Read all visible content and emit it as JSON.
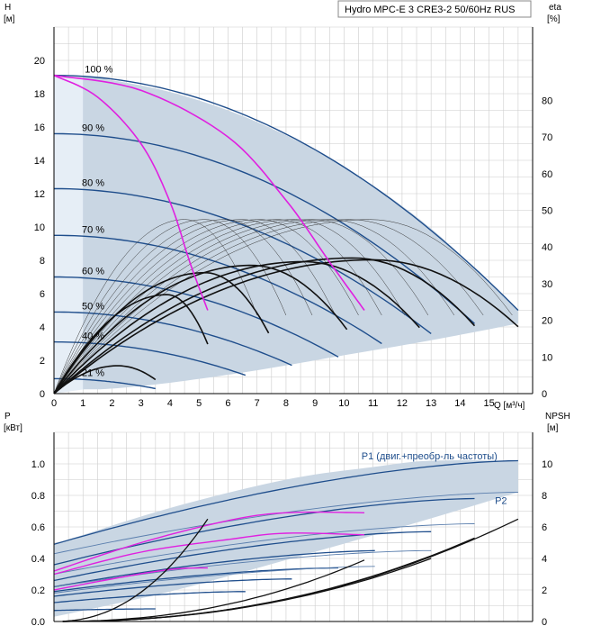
{
  "title": "Hydro MPC-E 3 CRE3-2 50/60Hz RUS",
  "colors": {
    "band": "#c9d6e3",
    "band_light": "#e6eef6",
    "curve_blue": "#1f4e8c",
    "curve_black": "#111111",
    "magenta": "#e020e0",
    "grid": "#cccccc"
  },
  "chart_data": [
    {
      "type": "line",
      "name": "head",
      "ylabel": "H",
      "yunit": "[м]",
      "y2label": "eta",
      "y2unit": "[%]",
      "xlabel": "Q [м³/ч]",
      "xlim": [
        0,
        16.5
      ],
      "ylim": [
        0,
        22
      ],
      "y2lim": [
        0,
        100
      ],
      "xticks": [
        0,
        1,
        2,
        3,
        4,
        5,
        6,
        7,
        8,
        9,
        10,
        11,
        12,
        13,
        14,
        15
      ],
      "yticks": [
        0,
        2,
        4,
        6,
        8,
        10,
        12,
        14,
        16,
        18,
        20
      ],
      "y2ticks": [
        0,
        10,
        20,
        30,
        40,
        50,
        60,
        70,
        80
      ],
      "grid": true,
      "speed_labels": [
        {
          "text": "100 %",
          "q": 1.0,
          "h": 19.1
        },
        {
          "text": "90 %",
          "q": 0.9,
          "h": 15.6
        },
        {
          "text": "80 %",
          "q": 0.9,
          "h": 12.3
        },
        {
          "text": "70 %",
          "q": 0.9,
          "h": 9.5
        },
        {
          "text": "60 %",
          "q": 0.9,
          "h": 7.0
        },
        {
          "text": "50 %",
          "q": 0.9,
          "h": 4.9
        },
        {
          "text": "40 %",
          "q": 0.9,
          "h": 3.1
        },
        {
          "text": "21 %",
          "q": 0.9,
          "h": 0.9
        }
      ],
      "qh_curves": [
        {
          "name": "100 %",
          "h0": 19.1,
          "qmax": 16.0,
          "hend": 5.0
        },
        {
          "name": "90 %",
          "h0": 15.6,
          "qmax": 14.5,
          "hend": 4.2
        },
        {
          "name": "80 %",
          "h0": 12.3,
          "qmax": 13.0,
          "hend": 3.6
        },
        {
          "name": "70 %",
          "h0": 9.5,
          "qmax": 11.3,
          "hend": 3.0
        },
        {
          "name": "60 %",
          "h0": 7.0,
          "qmax": 9.8,
          "hend": 2.2
        },
        {
          "name": "50 %",
          "h0": 4.9,
          "qmax": 8.2,
          "hend": 1.7
        },
        {
          "name": "40 %",
          "h0": 3.1,
          "qmax": 6.6,
          "hend": 1.1
        },
        {
          "name": "21 %",
          "h0": 0.9,
          "qmax": 3.5,
          "hend": 0.3
        }
      ],
      "band": {
        "upper": [
          [
            1.0,
            19.1
          ],
          [
            4,
            18.1
          ],
          [
            7,
            16.3
          ],
          [
            10,
            13.6
          ],
          [
            13,
            9.9
          ],
          [
            16.0,
            5.0
          ]
        ],
        "lower": [
          [
            16.0,
            4.2
          ],
          [
            13.0,
            3.2
          ],
          [
            10,
            2.3
          ],
          [
            7,
            1.4
          ],
          [
            4,
            0.65
          ],
          [
            2,
            0.3
          ],
          [
            1.0,
            0.25
          ]
        ]
      },
      "eta_curves": [
        {
          "peak_q": 2.2,
          "peak_eta": 7.6,
          "end_q": 3.5
        },
        {
          "peak_q": 3.9,
          "peak_eta": 27.0,
          "end_q": 5.3
        },
        {
          "peak_q": 5.2,
          "peak_eta": 33.0,
          "end_q": 7.4
        },
        {
          "peak_q": 6.8,
          "peak_eta": 35.0,
          "end_q": 10.1
        },
        {
          "peak_q": 8.6,
          "peak_eta": 36.0,
          "end_q": 12.6
        },
        {
          "peak_q": 10.3,
          "peak_eta": 37.0,
          "end_q": 14.5
        },
        {
          "peak_q": 11.0,
          "peak_eta": 36.5,
          "end_q": 16.0
        }
      ],
      "eta_fan": [
        {
          "peak_q": 4.5,
          "end_q": 7.0
        },
        {
          "peak_q": 5.2,
          "end_q": 8.0
        },
        {
          "peak_q": 5.9,
          "end_q": 8.9
        },
        {
          "peak_q": 6.5,
          "end_q": 9.7
        },
        {
          "peak_q": 7.1,
          "end_q": 10.5
        },
        {
          "peak_q": 7.7,
          "end_q": 11.3
        },
        {
          "peak_q": 8.3,
          "end_q": 12.1
        },
        {
          "peak_q": 8.9,
          "end_q": 12.9
        },
        {
          "peak_q": 9.5,
          "end_q": 13.8
        },
        {
          "peak_q": 10.2,
          "end_q": 14.8
        },
        {
          "peak_q": 10.9,
          "end_q": 15.8
        }
      ],
      "magenta_curves": [
        {
          "points": [
            [
              0,
              19.1
            ],
            [
              1.5,
              17.8
            ],
            [
              3,
              15.0
            ],
            [
              4,
              11.5
            ],
            [
              4.7,
              7.8
            ],
            [
              5.3,
              5.0
            ]
          ]
        },
        {
          "points": [
            [
              0,
              19.1
            ],
            [
              3,
              18.2
            ],
            [
              6,
              15.4
            ],
            [
              8,
              11.6
            ],
            [
              9.5,
              7.9
            ],
            [
              10.7,
              5.0
            ]
          ]
        }
      ]
    },
    {
      "type": "line",
      "name": "power",
      "ylabel": "P",
      "yunit": "[кВт]",
      "y2label": "NPSH",
      "y2unit": "[м]",
      "xlim": [
        0,
        16.5
      ],
      "ylim": [
        0,
        1.2
      ],
      "y2lim": [
        0,
        12
      ],
      "yticks": [
        0.0,
        0.2,
        0.4,
        0.6,
        0.8,
        1.0
      ],
      "yticklabels": [
        "0.0",
        "0.2",
        "0.4",
        "0.6",
        "0.8",
        "1.0"
      ],
      "y2ticks": [
        0,
        2,
        4,
        6,
        8,
        10
      ],
      "grid": true,
      "series_labels": [
        {
          "text": "P1 (двиг.+преобр-ль частоты)",
          "q": 10.6,
          "p": 1.03
        },
        {
          "text": "P2",
          "q": 15.2,
          "p": 0.745
        }
      ],
      "band": {
        "upper": [
          [
            0,
            0.49
          ],
          [
            4,
            0.72
          ],
          [
            8,
            0.9
          ],
          [
            11,
            0.98
          ],
          [
            13,
            1.02
          ],
          [
            16,
            1.02
          ]
        ],
        "lower": [
          [
            16,
            0.82
          ],
          [
            12,
            0.6
          ],
          [
            8,
            0.39
          ],
          [
            4,
            0.19
          ],
          [
            0,
            0.03
          ]
        ]
      },
      "p1_curves": [
        {
          "p0": 0.49,
          "qmax": 16.0,
          "pend": 1.02
        },
        {
          "p0": 0.36,
          "qmax": 14.5,
          "pend": 0.78
        },
        {
          "p0": 0.26,
          "qmax": 13.0,
          "pend": 0.57
        },
        {
          "p0": 0.22,
          "qmax": 11.3,
          "pend": 0.45
        },
        {
          "p0": 0.19,
          "qmax": 9.8,
          "pend": 0.34
        },
        {
          "p0": 0.16,
          "qmax": 8.2,
          "pend": 0.27
        },
        {
          "p0": 0.12,
          "qmax": 6.6,
          "pend": 0.19
        },
        {
          "p0": 0.07,
          "qmax": 3.5,
          "pend": 0.08
        }
      ],
      "p2_curves": [
        {
          "p0": 0.43,
          "qmax": 16.0,
          "pend": 0.82
        },
        {
          "p0": 0.3,
          "qmax": 14.5,
          "pend": 0.62
        },
        {
          "p0": 0.22,
          "qmax": 13.0,
          "pend": 0.45
        },
        {
          "p0": 0.18,
          "qmax": 11.3,
          "pend": 0.35
        }
      ],
      "magenta_curves": [
        {
          "points": [
            [
              0,
              0.32
            ],
            [
              3,
              0.5
            ],
            [
              6,
              0.64
            ],
            [
              8,
              0.69
            ],
            [
              10.7,
              0.69
            ]
          ]
        },
        {
          "points": [
            [
              0,
              0.3
            ],
            [
              3,
              0.44
            ],
            [
              6,
              0.52
            ],
            [
              8,
              0.56
            ],
            [
              10.7,
              0.55
            ]
          ]
        },
        {
          "points": [
            [
              0,
              0.2
            ],
            [
              2,
              0.27
            ],
            [
              4,
              0.33
            ],
            [
              5.3,
              0.34
            ]
          ]
        }
      ],
      "npsh_curves": [
        {
          "end_q": 5.3,
          "end_npsh": 6.5
        },
        {
          "end_q": 10.7,
          "end_npsh": 3.9
        },
        {
          "end_q": 13.0,
          "end_npsh": 4.0
        },
        {
          "end_q": 14.5,
          "end_npsh": 5.3
        },
        {
          "end_q": 16.0,
          "end_npsh": 6.5
        }
      ]
    }
  ]
}
